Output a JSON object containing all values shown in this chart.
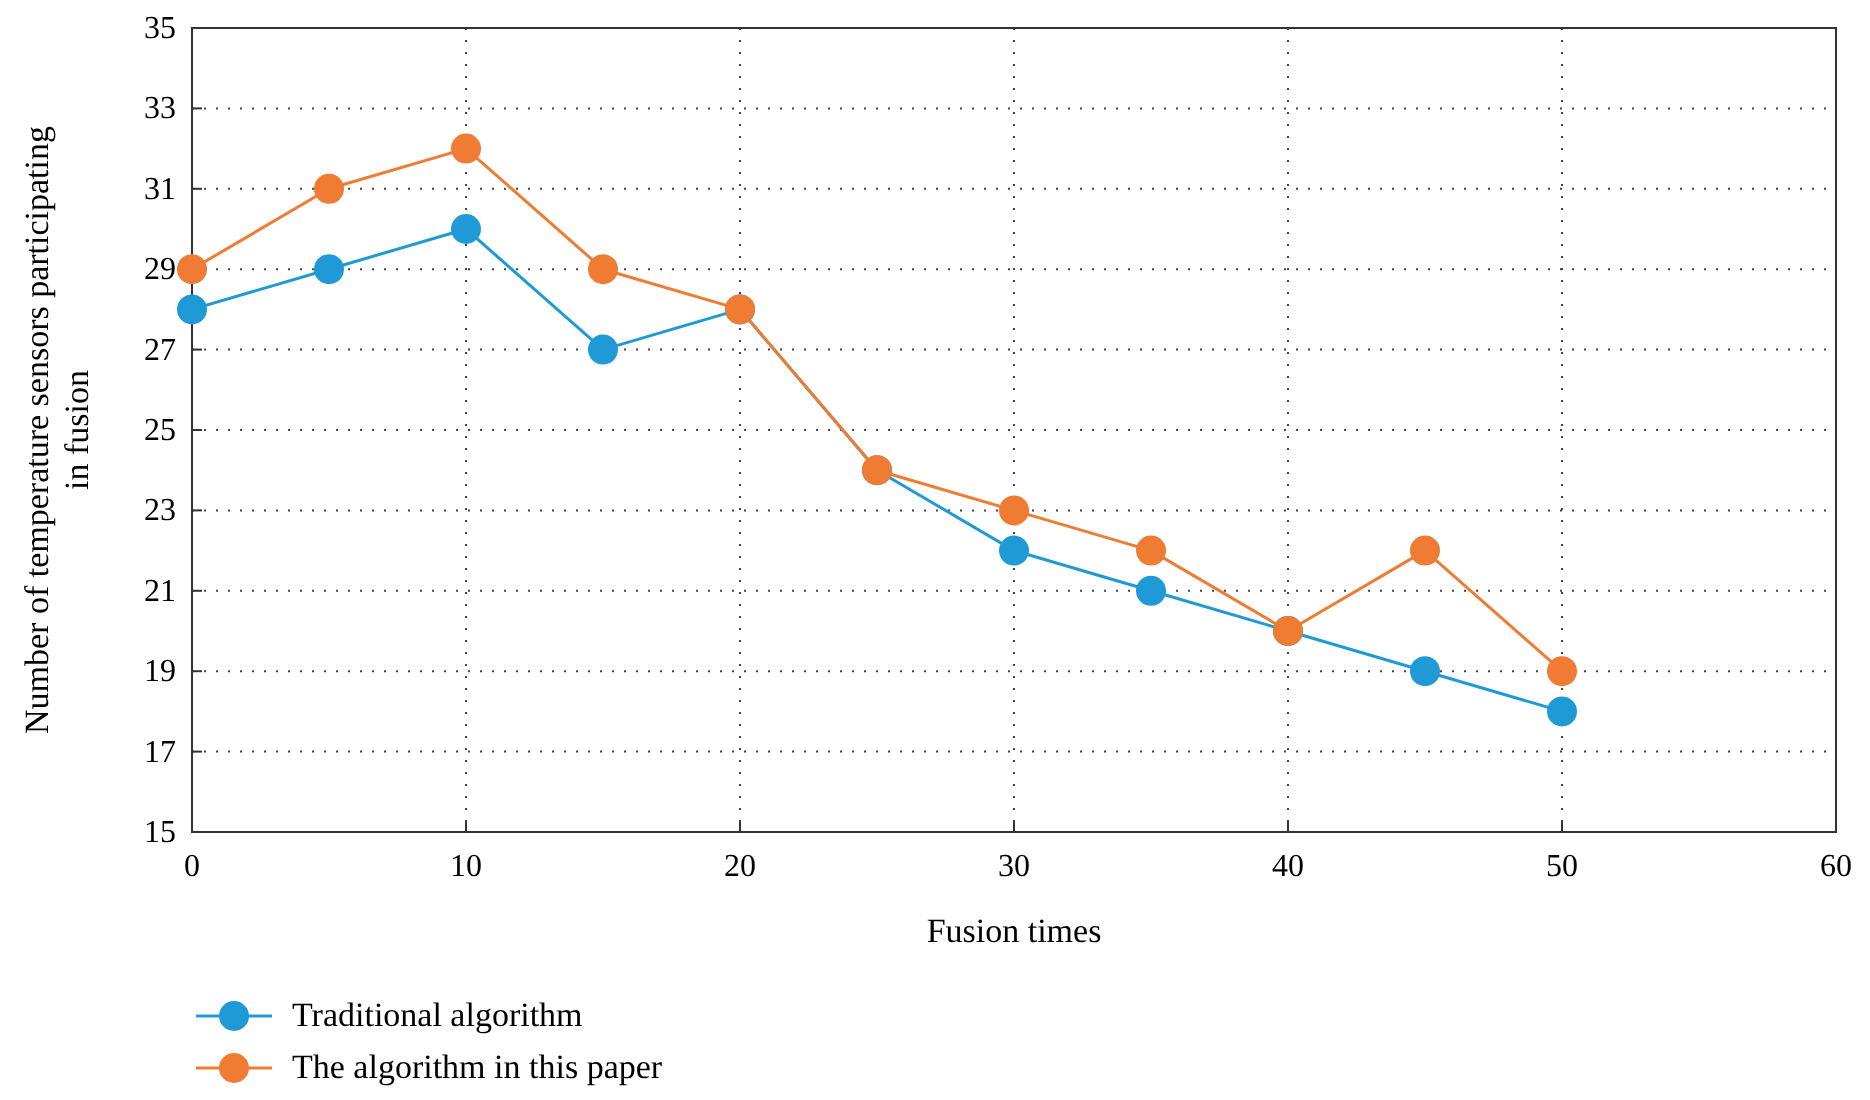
{
  "chart_data": {
    "type": "line",
    "xlabel": "Fusion times",
    "ylabel": "Number of temperature sensors participating in fusion",
    "x": [
      0,
      5,
      10,
      15,
      20,
      25,
      30,
      35,
      40,
      45,
      50
    ],
    "series": [
      {
        "name": "Traditional algorithm",
        "color": "#1f9ad6",
        "values": [
          28,
          29,
          30,
          27,
          28,
          24,
          22,
          21,
          20,
          19,
          18
        ]
      },
      {
        "name": "The algorithm in this paper",
        "color": "#f07b32",
        "values": [
          29,
          31,
          32,
          29,
          28,
          24,
          23,
          22,
          20,
          22,
          19
        ]
      }
    ],
    "xlim": [
      0,
      60
    ],
    "xticks": [
      0,
      10,
      20,
      30,
      40,
      50,
      60
    ],
    "ylim": [
      15,
      35
    ],
    "yticks": [
      15,
      17,
      19,
      21,
      23,
      25,
      27,
      29,
      31,
      33,
      35
    ],
    "grid": true,
    "legend": "bottom left",
    "marker": "circle",
    "line_style": "solid"
  }
}
